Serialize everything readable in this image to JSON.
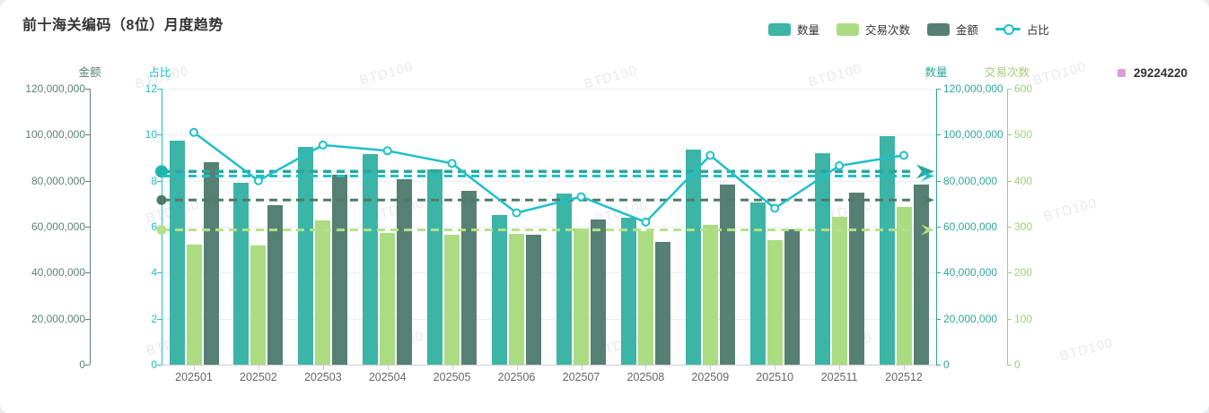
{
  "title": "前十海关编码（8位）月度趋势",
  "legend": {
    "items": [
      {
        "label": "数量",
        "type": "bar",
        "color": "#3cb4a6"
      },
      {
        "label": "交易次数",
        "type": "bar",
        "color": "#abdc82"
      },
      {
        "label": "金额",
        "type": "bar",
        "color": "#568073"
      },
      {
        "label": "占比",
        "type": "line",
        "color": "#1fc0c8"
      }
    ]
  },
  "hs_code_legend": {
    "label": "29224220",
    "color": "#d79fd6"
  },
  "watermark_text": "BTD100",
  "chart_data": {
    "type": "bar",
    "subtype": "grouped bars + line combo, 4 value axes",
    "categories": [
      "202501",
      "202502",
      "202503",
      "202504",
      "202505",
      "202506",
      "202507",
      "202508",
      "202509",
      "202510",
      "202511",
      "202512"
    ],
    "series": [
      {
        "name": "数量",
        "type": "bar",
        "y_axis": "数量",
        "color": "#3cb4a6",
        "values": [
          97500000,
          79000000,
          94500000,
          91500000,
          85000000,
          65000000,
          74500000,
          64000000,
          93500000,
          70500000,
          92000000,
          99500000
        ]
      },
      {
        "name": "交易次数",
        "type": "bar",
        "y_axis": "交易次数",
        "color": "#abdc82",
        "values": [
          262,
          260,
          314,
          286,
          283,
          285,
          297,
          290,
          304,
          271,
          322,
          343
        ]
      },
      {
        "name": "金额",
        "type": "bar",
        "y_axis": "金额",
        "color": "#568073",
        "values": [
          88000000,
          69500000,
          82500000,
          80500000,
          75500000,
          56500000,
          63000000,
          53500000,
          78500000,
          59000000,
          75000000,
          78500000
        ]
      },
      {
        "name": "占比",
        "type": "line",
        "y_axis": "占比",
        "color": "#1fc0c8",
        "values": [
          10.1,
          8.0,
          9.55,
          9.3,
          8.75,
          6.6,
          7.3,
          6.2,
          9.1,
          6.8,
          8.65,
          9.1
        ]
      }
    ],
    "average_lines": [
      {
        "series": "数量",
        "value": 84000000,
        "color": "#2aa79b",
        "style": "dashed",
        "left_marker": "circle",
        "right_marker": "arrow"
      },
      {
        "series": "占比",
        "value": 8.2,
        "color": "#1fc0c8",
        "style": "dashed",
        "left_marker": "none",
        "right_marker": "arrow"
      },
      {
        "series": "金额",
        "value": 71600000,
        "color": "#4f7a6b",
        "style": "dashed",
        "left_marker": "circle",
        "right_marker": "arrow"
      },
      {
        "series": "交易次数",
        "value": 293,
        "color": "#b5e08a",
        "style": "dashed",
        "left_marker": "circle",
        "right_marker": "arrow"
      }
    ],
    "axes": [
      {
        "id": "金额",
        "title": "金额",
        "side": "left",
        "slot": 0,
        "min": 0,
        "max": 120000000,
        "color": "#5e8276",
        "tick_labels": [
          "0",
          "20,000,000",
          "40,000,000",
          "60,000,000",
          "80,000,000",
          "100,000,000",
          "120,000,000"
        ]
      },
      {
        "id": "占比",
        "title": "占比",
        "side": "left",
        "slot": 1,
        "min": 0,
        "max": 12,
        "color": "#1fc0c8",
        "tick_labels": [
          "0",
          "2",
          "4",
          "6",
          "8",
          "10",
          "12"
        ]
      },
      {
        "id": "数量",
        "title": "数量",
        "side": "right",
        "slot": 0,
        "min": 0,
        "max": 120000000,
        "color": "#2fa89b",
        "tick_labels": [
          "0",
          "20,000,000",
          "40,000,000",
          "60,000,000",
          "80,000,000",
          "100,000,000",
          "120,000,000"
        ]
      },
      {
        "id": "交易次数",
        "title": "交易次数",
        "side": "right",
        "slot": 1,
        "min": 0,
        "max": 600,
        "color": "#9ed173",
        "tick_labels": [
          "0",
          "100",
          "200",
          "300",
          "400",
          "500",
          "600"
        ]
      }
    ],
    "grid": true,
    "legend_position": "top-right",
    "xlabel": "",
    "ylabel": ""
  }
}
